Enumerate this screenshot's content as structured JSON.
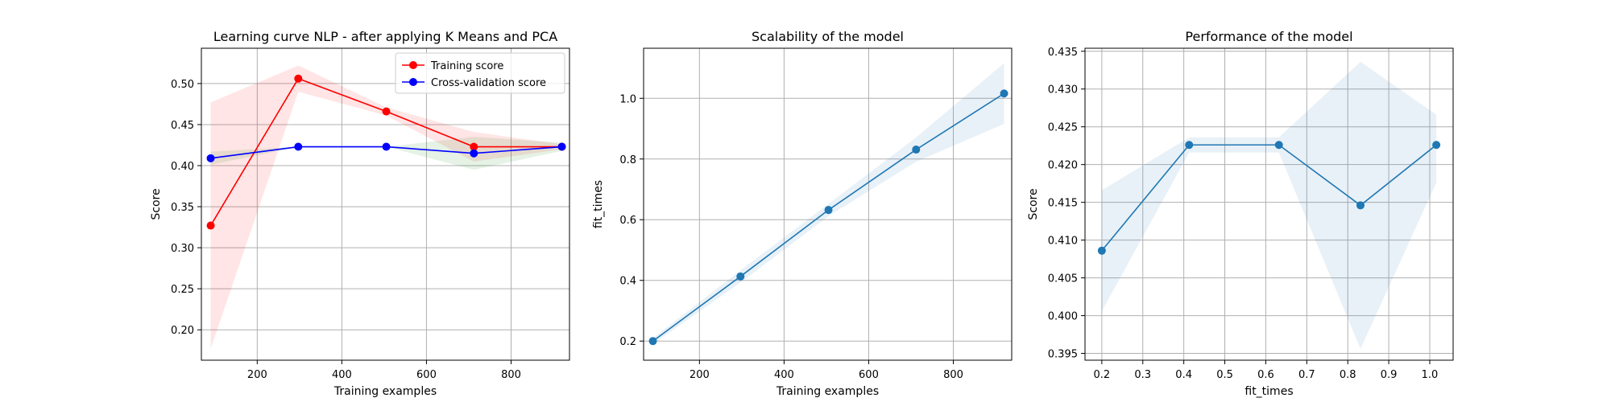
{
  "chart_data": [
    {
      "type": "line",
      "title": "Learning curve NLP - after applying K Means and PCA",
      "xlabel": "Training examples",
      "ylabel": "Score",
      "xlim": [
        68,
        938
      ],
      "ylim": [
        0.163,
        0.543
      ],
      "xticks": [
        200,
        400,
        600,
        800
      ],
      "yticks": [
        0.2,
        0.25,
        0.3,
        0.35,
        0.4,
        0.45,
        0.5
      ],
      "ytick_decimals": 2,
      "grid": true,
      "legend": "top-right",
      "x": [
        90,
        297,
        505,
        712,
        920
      ],
      "series": [
        {
          "name": "Training score",
          "color": "#ff0000",
          "band_color": "#ff0000",
          "values": [
            0.327,
            0.506,
            0.466,
            0.423,
            0.423
          ],
          "lower": [
            0.177,
            0.49,
            0.461,
            0.405,
            0.42
          ],
          "upper": [
            0.477,
            0.522,
            0.471,
            0.441,
            0.426
          ]
        },
        {
          "name": "Cross-validation score",
          "color": "#0000ff",
          "band_color": "#008000",
          "values": [
            0.409,
            0.423,
            0.423,
            0.415,
            0.423
          ],
          "lower": [
            0.401,
            0.423,
            0.423,
            0.395,
            0.418
          ],
          "upper": [
            0.417,
            0.423,
            0.423,
            0.435,
            0.428
          ]
        }
      ]
    },
    {
      "type": "line",
      "title": "Scalability of the model",
      "xlabel": "Training examples",
      "ylabel": "fit_times",
      "xlim": [
        68,
        938
      ],
      "ylim": [
        0.137,
        1.165
      ],
      "xticks": [
        200,
        400,
        600,
        800
      ],
      "yticks": [
        0.2,
        0.4,
        0.6,
        0.8,
        1.0
      ],
      "ytick_decimals": 1,
      "grid": true,
      "x": [
        90,
        297,
        505,
        712,
        920
      ],
      "series": [
        {
          "color": "#1f77b4",
          "band_color": "#1f77b4",
          "values": [
            0.2,
            0.413,
            0.632,
            0.831,
            1.016
          ],
          "lower": [
            0.19,
            0.393,
            0.612,
            0.791,
            0.916
          ],
          "upper": [
            0.21,
            0.433,
            0.652,
            0.871,
            1.116
          ]
        }
      ]
    },
    {
      "type": "line",
      "title": "Performance of the model",
      "xlabel": "fit_times",
      "ylabel": "Score",
      "xlim": [
        0.159,
        1.057
      ],
      "ylim": [
        0.3941,
        0.4354
      ],
      "xticks": [
        0.2,
        0.3,
        0.4,
        0.5,
        0.6,
        0.7,
        0.8,
        0.9,
        1.0
      ],
      "yticks": [
        0.395,
        0.4,
        0.405,
        0.41,
        0.415,
        0.42,
        0.425,
        0.43,
        0.435
      ],
      "xtick_decimals": 1,
      "ytick_decimals": 3,
      "grid": true,
      "x": [
        0.2,
        0.413,
        0.632,
        0.831,
        1.016
      ],
      "series": [
        {
          "color": "#1f77b4",
          "band_color": "#1f77b4",
          "values": [
            0.4086,
            0.4226,
            0.4226,
            0.4146,
            0.4226
          ],
          "lower": [
            0.4006,
            0.4216,
            0.4216,
            0.3956,
            0.4176
          ],
          "upper": [
            0.4166,
            0.4236,
            0.4236,
            0.4336,
            0.4266
          ]
        }
      ]
    }
  ]
}
